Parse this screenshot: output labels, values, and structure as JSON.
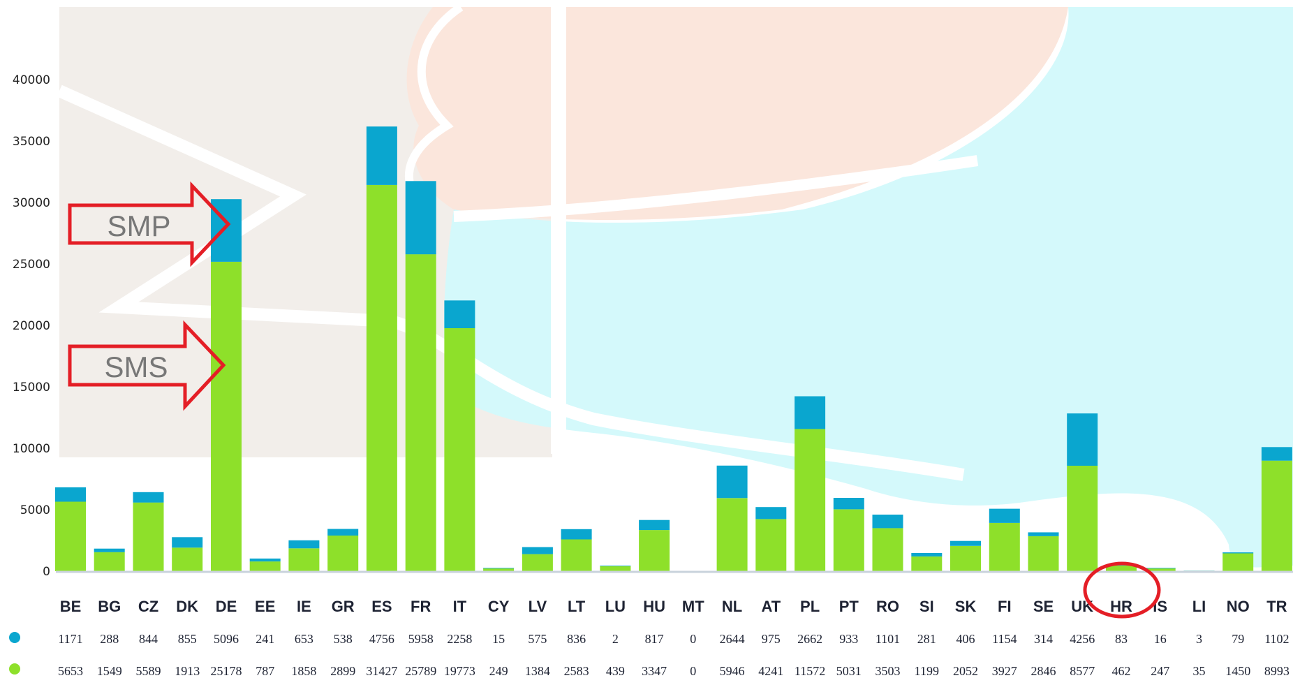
{
  "chart_data": {
    "type": "bar",
    "stacked": true,
    "categories": [
      "BE",
      "BG",
      "CZ",
      "DK",
      "DE",
      "EE",
      "IE",
      "GR",
      "ES",
      "FR",
      "IT",
      "CY",
      "LV",
      "LT",
      "LU",
      "HU",
      "MT",
      "NL",
      "AT",
      "PL",
      "PT",
      "RO",
      "SI",
      "SK",
      "FI",
      "SE",
      "UK",
      "HR",
      "IS",
      "LI",
      "NO",
      "TR"
    ],
    "series": [
      {
        "values": [
          5653,
          1549,
          5589,
          1913,
          25178,
          787,
          1858,
          2899,
          31427,
          25789,
          19773,
          249,
          1384,
          2583,
          439,
          3347,
          0,
          5946,
          4241,
          11572,
          5031,
          3503,
          1199,
          2052,
          3927,
          2846,
          8577,
          462,
          247,
          35,
          1450,
          8993
        ],
        "color": "#8ee02a"
      },
      {
        "values": [
          1171,
          288,
          844,
          855,
          5096,
          241,
          653,
          538,
          4756,
          5958,
          2258,
          15,
          575,
          836,
          2,
          817,
          0,
          2644,
          975,
          2662,
          933,
          1101,
          281,
          406,
          1154,
          314,
          4256,
          83,
          16,
          3,
          79,
          1102
        ],
        "color": "#0aa6cf"
      }
    ],
    "row_labels": [
      [
        "1171",
        "288",
        "844",
        "855",
        "5096",
        "241",
        "653",
        "538",
        "4756",
        "5958",
        "2258",
        "15",
        "575",
        "836",
        "2",
        "817",
        "0",
        "2644",
        "975",
        "2662",
        "933",
        "1101",
        "281",
        "406",
        "1154",
        "314",
        "4256",
        "83",
        "16",
        "3",
        "79",
        "1102"
      ],
      [
        "5653",
        "1549",
        "5589",
        "1913",
        "25178",
        "787",
        "1858",
        "2899",
        "31427",
        "25789",
        "19773",
        "249",
        "1384",
        "2583",
        "439",
        "3347",
        "0",
        "5946",
        "4241",
        "11572",
        "5031",
        "3503",
        "1199",
        "2052",
        "3927",
        "2846",
        "8577",
        "462",
        "247",
        "35",
        "1450",
        "8993"
      ]
    ],
    "y_ticks": [
      "40000",
      "35000",
      "30000",
      "25000",
      "20000",
      "15000",
      "10000",
      "5000",
      "0"
    ],
    "ylim": [
      0,
      40000
    ],
    "grid": false,
    "annotations": [
      {
        "text": "SMP",
        "type": "arrow",
        "target": "DE"
      },
      {
        "text": "SMS",
        "type": "arrow",
        "target": "DE"
      },
      {
        "type": "circle",
        "target": "HR"
      }
    ]
  },
  "colors": {
    "annotation_red": "#e41e26",
    "bg_beige": "#f2eeea",
    "bg_peach": "#fbe6dc",
    "bg_cyan": "#d4f9fb"
  }
}
